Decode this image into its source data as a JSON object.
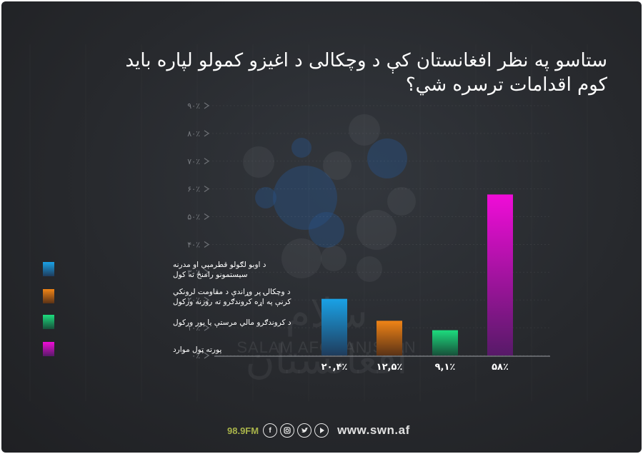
{
  "title": "ستاسو په نظر افغانستان کې د وچکالی د اغیزو کمولو لپاره باید کوم اقدامات ترسره شي؟",
  "chart_data": {
    "type": "bar",
    "title": "ستاسو په نظر افغانستان کې د وچکالی د اغیزو کمولو لپاره باید کوم اقدامات ترسره شي؟",
    "ylim": [
      0,
      90
    ],
    "ytick_labels": [
      "۰٪",
      "۱۰٪",
      "۲۰٪",
      "۳۰٪",
      "۴۰٪",
      "۵۰٪",
      "۶۰٪",
      "۷۰٪",
      "۸۰٪",
      "۹۰٪"
    ],
    "ytick_values": [
      0,
      10,
      20,
      30,
      40,
      50,
      60,
      70,
      80,
      90
    ],
    "grid": true,
    "legend_position": "left",
    "categories": [
      "د اوبو لګولو قطرمېي او مدرنه سیستمونو رامنځ ته کول",
      "د وچکالۍ پر وړاندې د مقاومت لرونکي کرنې په اړه کروندګرو ته روزنه ورکول",
      "د کروندګرو مالي مرستې یا پور ورکول",
      "پورته ټول موارد"
    ],
    "values": [
      20.4,
      12.5,
      9.1,
      58
    ],
    "value_labels": [
      "۲۰,۴٪",
      "۱۲,۵٪",
      "۹,۱٪",
      "۵۸٪"
    ],
    "colors": [
      [
        "#1aa2e6",
        "#1f3c5c"
      ],
      [
        "#f08416",
        "#5a3216"
      ],
      [
        "#1ddc7e",
        "#17513a"
      ],
      [
        "#f00cd8",
        "#571a68"
      ]
    ]
  },
  "legend": [
    {
      "lines": [
        "د اوبو لګولو قطرمېي او مدرنه",
        "سیستمونو رامنځ ته کول"
      ]
    },
    {
      "lines": [
        "د وچکالۍ پر وړاندې د مقاومت لرونکي",
        "کرنې په اړه کروندګرو ته روزنه ورکول"
      ]
    },
    {
      "lines": [
        "د کروندګرو مالي مرستې یا پور ورکول"
      ]
    },
    {
      "lines": [
        "پورته ټول موارد"
      ]
    }
  ],
  "watermark": {
    "arabic": "سلام افغانستان",
    "latin": "SALAM AFGHANISTAN"
  },
  "footer": {
    "fm": "98.9FM",
    "site": "www.swn.af"
  },
  "icons": [
    "facebook-icon",
    "instagram-icon",
    "twitter-icon",
    "youtube-icon"
  ]
}
